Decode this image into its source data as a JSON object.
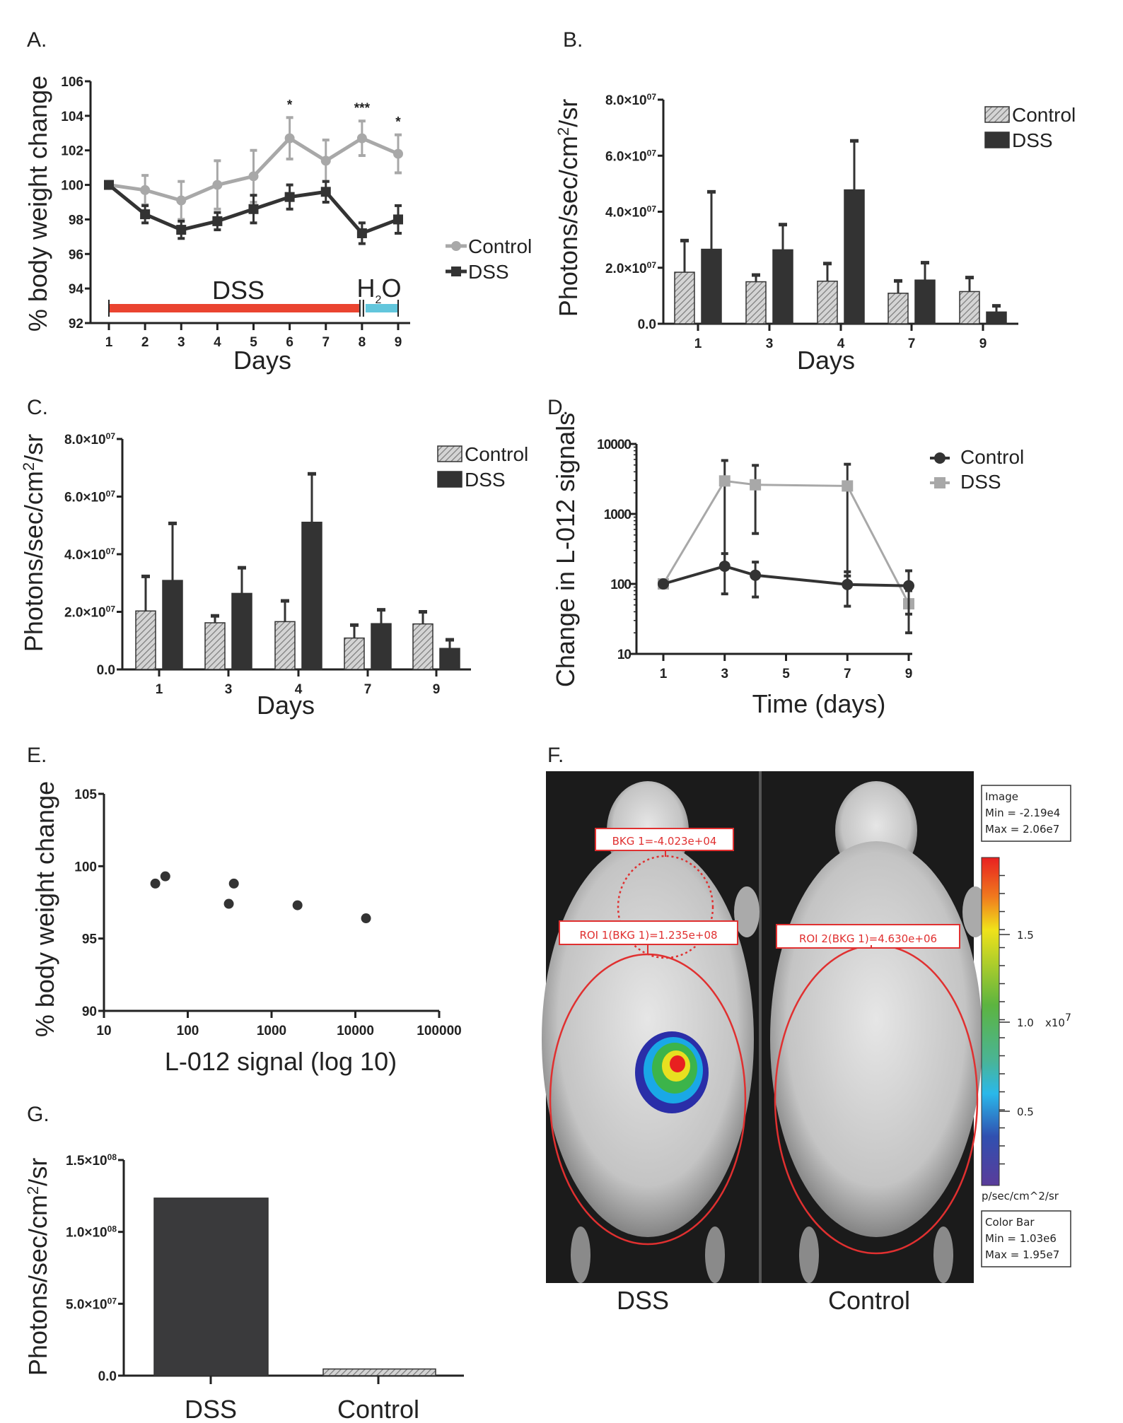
{
  "chart_data": [
    {
      "panel": "A.",
      "type": "line",
      "xlabel": "Days",
      "ylabel": "% body weight change",
      "ylim": [
        92,
        106
      ],
      "yticks": [
        92,
        94,
        96,
        98,
        100,
        102,
        104,
        106
      ],
      "x": [
        1,
        2,
        3,
        4,
        5,
        6,
        7,
        8,
        9
      ],
      "legend": "right",
      "series": [
        {
          "name": "Control",
          "marker": "circle",
          "color": "#a8a8a8",
          "values": [
            100,
            99.7,
            99.1,
            100.0,
            100.5,
            102.7,
            101.4,
            102.7,
            101.8
          ],
          "error": [
            0,
            0.85,
            1.1,
            1.4,
            1.5,
            1.2,
            1.2,
            1.0,
            1.1
          ]
        },
        {
          "name": "DSS",
          "marker": "square",
          "color": "#333333",
          "values": [
            100,
            98.3,
            97.4,
            97.9,
            98.6,
            99.3,
            99.6,
            97.2,
            98.0
          ],
          "error": [
            0,
            0.5,
            0.5,
            0.5,
            0.8,
            0.7,
            0.6,
            0.6,
            0.8
          ]
        }
      ],
      "annotations": [
        {
          "x": 6,
          "text": "*"
        },
        {
          "x": 8,
          "text": "***"
        },
        {
          "x": 9,
          "text": "*"
        }
      ],
      "treatment_bars": [
        {
          "label": "DSS",
          "from": 1,
          "to": 8,
          "color": "#ea4430"
        },
        {
          "label_main": "H",
          "label_sub": "2",
          "label_end": "O",
          "from": 8,
          "to": 9,
          "color": "#62c6dc"
        }
      ]
    },
    {
      "panel": "B.",
      "type": "bar",
      "xlabel": "Days",
      "ylabel": {
        "main": "Photons/sec/cm",
        "sup": "2",
        "end": "/sr"
      },
      "ylim": [
        0,
        80000000
      ],
      "yticks": [
        0,
        20000000,
        40000000,
        60000000,
        80000000
      ],
      "ytick_labels": [
        {
          "m": "0.0",
          "e": ""
        },
        {
          "m": "2.0×10",
          "e": "07"
        },
        {
          "m": "4.0×10",
          "e": "07"
        },
        {
          "m": "6.0×10",
          "e": "07"
        },
        {
          "m": "8.0×10",
          "e": "07"
        }
      ],
      "categories": [
        "1",
        "3",
        "4",
        "7",
        "9"
      ],
      "legend": "top-right",
      "series": [
        {
          "name": "Control",
          "pattern": "hatched",
          "values": [
            18400000,
            15000000,
            15200000,
            10900000,
            11500000
          ],
          "error_top": [
            29700000,
            17400000,
            21500000,
            15300000,
            16500000
          ]
        },
        {
          "name": "DSS",
          "color": "#333333",
          "values": [
            26600000,
            26400000,
            47800000,
            15600000,
            4200000
          ],
          "error_top": [
            47100000,
            35400000,
            65300000,
            21800000,
            6400000
          ]
        }
      ]
    },
    {
      "panel": "C.",
      "type": "bar",
      "xlabel": "Days",
      "ylabel": {
        "main": "Photons/sec/cm",
        "sup": "2",
        "end": "/sr"
      },
      "ylim": [
        0,
        80000000
      ],
      "yticks": [
        0,
        20000000,
        40000000,
        60000000,
        80000000
      ],
      "ytick_labels": [
        {
          "m": "0.0",
          "e": ""
        },
        {
          "m": "2.0×10",
          "e": "07"
        },
        {
          "m": "4.0×10",
          "e": "07"
        },
        {
          "m": "6.0×10",
          "e": "07"
        },
        {
          "m": "8.0×10",
          "e": "07"
        }
      ],
      "categories": [
        "1",
        "3",
        "4",
        "7",
        "9"
      ],
      "legend": "top-right",
      "series": [
        {
          "name": "Control",
          "pattern": "hatched",
          "values": [
            20300000,
            16200000,
            16600000,
            10900000,
            15800000
          ],
          "error_top": [
            32300000,
            18600000,
            23800000,
            15400000,
            20000000
          ]
        },
        {
          "name": "DSS",
          "color": "#333333",
          "values": [
            30900000,
            26400000,
            51100000,
            15900000,
            7300000
          ],
          "error_top": [
            50700000,
            35300000,
            67900000,
            20700000,
            10300000
          ]
        }
      ]
    },
    {
      "panel": "D.",
      "type": "line",
      "xlabel": "Time (days)",
      "ylabel": "Change in L-012 signals",
      "yscale": "log",
      "ylim": [
        10,
        10000
      ],
      "yticks": [
        10,
        100,
        1000,
        10000
      ],
      "ytick_labels": [
        "10",
        "100",
        "1000",
        "10000"
      ],
      "xlim": [
        1,
        9
      ],
      "xticks": [
        1,
        3,
        5,
        7,
        9
      ],
      "legend": "top-right",
      "series": [
        {
          "name": "Control",
          "marker": "circle",
          "color": "#333333",
          "x": [
            1,
            3,
            4,
            7,
            9
          ],
          "values": [
            100,
            179,
            133,
            98,
            94
          ],
          "error_hi": [
            100,
            271,
            205,
            149,
            154
          ],
          "error_lo": [
            100,
            72,
            65,
            48,
            37
          ]
        },
        {
          "name": "DSS",
          "marker": "square",
          "color": "#a8a8a8",
          "x": [
            1,
            3,
            4,
            7,
            9
          ],
          "values": [
            100,
            2960,
            2610,
            2510,
            52
          ],
          "error_hi": [
            100,
            5800,
            4940,
            5130,
            80
          ],
          "error_lo": [
            100,
            180,
            525,
            130,
            20
          ]
        }
      ]
    },
    {
      "panel": "E.",
      "type": "scatter",
      "xlabel": "L-012 signal (log 10)",
      "ylabel": "% body weight change",
      "xscale": "log",
      "xlim": [
        10,
        100000
      ],
      "xticks": [
        10,
        100,
        1000,
        10000,
        100000
      ],
      "xtick_labels": [
        "10",
        "100",
        "1000",
        "10000",
        "100000"
      ],
      "ylim": [
        90,
        105
      ],
      "yticks": [
        90,
        95,
        100,
        105
      ],
      "points": [
        {
          "x": 41,
          "y": 98.8
        },
        {
          "x": 54,
          "y": 99.3
        },
        {
          "x": 309,
          "y": 97.4
        },
        {
          "x": 355,
          "y": 98.8
        },
        {
          "x": 2040,
          "y": 97.3
        },
        {
          "x": 13400,
          "y": 96.4
        }
      ],
      "color": "#333333"
    },
    {
      "panel": "G.",
      "type": "bar",
      "ylabel": {
        "main": "Photons/sec/cm",
        "sup": "2",
        "end": "/sr"
      },
      "ylim": [
        0,
        150000000
      ],
      "yticks": [
        0,
        50000000,
        100000000,
        150000000
      ],
      "ytick_labels": [
        {
          "m": "0.0",
          "e": ""
        },
        {
          "m": "5.0×10",
          "e": "07"
        },
        {
          "m": "1.0×10",
          "e": "08"
        },
        {
          "m": "1.5×10",
          "e": "08"
        }
      ],
      "categories": [
        "DSS",
        "Control"
      ],
      "values": [
        123500000,
        4630000
      ],
      "patterns": [
        "solid",
        "hatched"
      ]
    }
  ],
  "image_panel": {
    "panel": "F.",
    "labels": [
      "DSS",
      "Control"
    ],
    "bkg_label": "BKG 1=-4.023e+04",
    "roi1_label": "ROI 1(BKG 1)=1.235e+08",
    "roi2_label": "ROI 2(BKG 1)=4.630e+06",
    "image_box": [
      "Image",
      "Min = -2.19e4",
      "Max = 2.06e7"
    ],
    "colorbar_box": [
      "Color Bar",
      "Min = 1.03e6",
      "Max = 1.95e7"
    ],
    "colorbar_unit": "p/sec/cm^2/sr",
    "colorbar_ticks": [
      "1.5",
      "1.0",
      "0.5"
    ],
    "colorbar_scale_main": "x10",
    "colorbar_scale_exp": "7",
    "roi_color": "#e03030"
  }
}
